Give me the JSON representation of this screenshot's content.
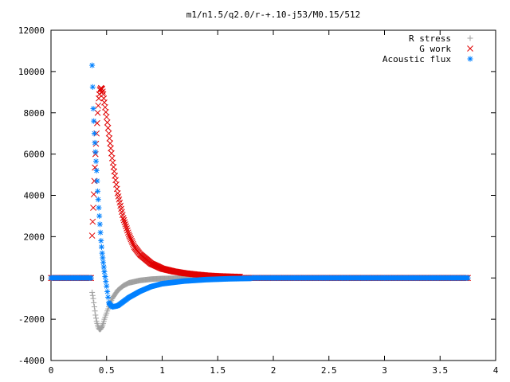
{
  "chart_data": {
    "type": "scatter",
    "title": "m1/n1.5/q2.0/r-+.10-j53/M0.15/512",
    "xlabel": "",
    "ylabel": "",
    "xlim": [
      0,
      4
    ],
    "ylim": [
      -4000,
      12000
    ],
    "x_ticks": [
      "0",
      "0.5",
      "1",
      "1.5",
      "2",
      "2.5",
      "3",
      "3.5",
      "4"
    ],
    "y_ticks": [
      "-4000",
      "-2000",
      "0",
      "2000",
      "4000",
      "6000",
      "8000",
      "10000",
      "12000"
    ],
    "grid": false,
    "legend_position": "top-right",
    "series": [
      {
        "name": "R stress",
        "marker": "plus",
        "color": "#a0a0a0",
        "x": [
          0.37,
          0.38,
          0.39,
          0.4,
          0.41,
          0.42,
          0.43,
          0.44,
          0.45,
          0.46,
          0.47,
          0.48,
          0.5,
          0.52,
          0.55,
          0.6,
          0.65,
          0.7,
          0.8,
          0.9,
          1.0,
          1.2,
          1.4,
          1.6
        ],
        "y": [
          -700,
          -1000,
          -1400,
          -1800,
          -2100,
          -2300,
          -2450,
          -2500,
          -2450,
          -2350,
          -2200,
          -2000,
          -1700,
          -1400,
          -1000,
          -600,
          -380,
          -240,
          -120,
          -60,
          -30,
          -10,
          -5,
          -2
        ]
      },
      {
        "name": "G work",
        "marker": "cross",
        "color": "#e00000",
        "x": [
          0.37,
          0.38,
          0.39,
          0.4,
          0.41,
          0.42,
          0.43,
          0.44,
          0.45,
          0.46,
          0.47,
          0.48,
          0.5,
          0.52,
          0.55,
          0.6,
          0.65,
          0.7,
          0.75,
          0.8,
          0.9,
          1.0,
          1.1,
          1.2,
          1.3,
          1.4,
          1.5,
          1.6,
          1.7
        ],
        "y": [
          2050,
          3400,
          4700,
          6000,
          7000,
          8000,
          8700,
          9100,
          9200,
          9150,
          8900,
          8500,
          7800,
          7000,
          5800,
          4100,
          2900,
          2100,
          1500,
          1150,
          700,
          450,
          320,
          230,
          170,
          120,
          90,
          70,
          55
        ]
      },
      {
        "name": "Acoustic flux",
        "marker": "star",
        "color": "#0080ff",
        "x": [
          0.37,
          0.38,
          0.39,
          0.4,
          0.41,
          0.42,
          0.43,
          0.44,
          0.45,
          0.46,
          0.47,
          0.48,
          0.5,
          0.52,
          0.55,
          0.6,
          0.65,
          0.7,
          0.8,
          0.9,
          1.0,
          1.2,
          1.4,
          1.6,
          1.8
        ],
        "y": [
          10300,
          8200,
          7000,
          6100,
          5200,
          4200,
          3400,
          2600,
          1800,
          1200,
          750,
          300,
          -400,
          -1200,
          -1400,
          -1350,
          -1150,
          -950,
          -650,
          -420,
          -280,
          -150,
          -80,
          -40,
          -20
        ]
      }
    ]
  }
}
